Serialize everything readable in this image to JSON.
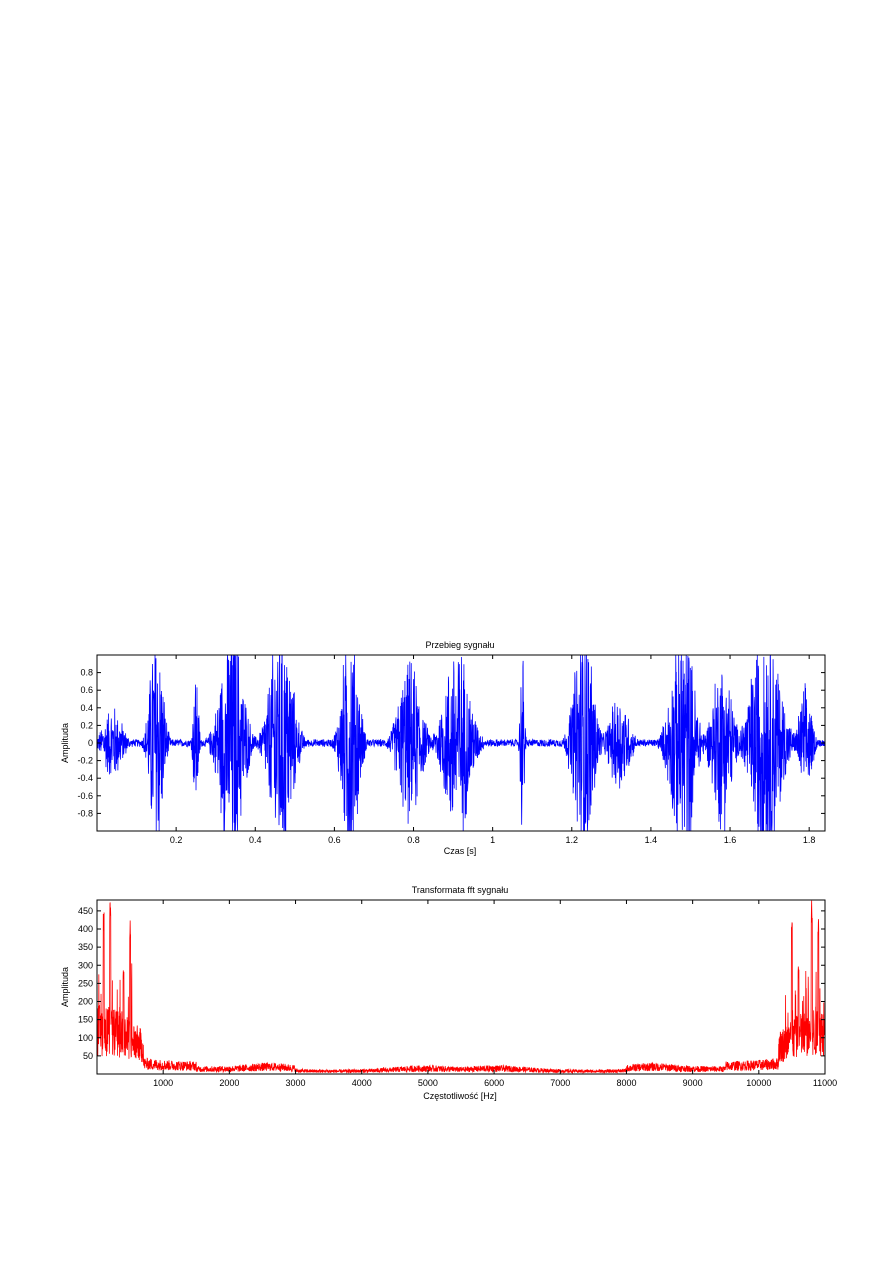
{
  "chart_data": [
    {
      "type": "line",
      "title": "Przebieg sygnału",
      "xlabel": "Czas [s]",
      "ylabel": "Amplituda",
      "xlim": [
        0,
        1.84
      ],
      "ylim": [
        -1,
        1
      ],
      "xticks": [
        0.2,
        0.4,
        0.6,
        0.8,
        1,
        1.2,
        1.4,
        1.6,
        1.8
      ],
      "xtick_labels": [
        "0.2",
        "0.4",
        "0.6",
        "0.8",
        "1",
        "1.2",
        "1.4",
        "1.6",
        "1.8"
      ],
      "yticks": [
        0.8,
        0.6,
        0.4,
        0.2,
        0,
        -0.2,
        -0.4,
        -0.6,
        -0.8
      ],
      "ytick_labels": [
        "0.8",
        "0.6",
        "0.4",
        "0.2",
        "0",
        "-0.2",
        "-0.4",
        "-0.6",
        "-0.8"
      ],
      "grid": false,
      "color": "#0000ff",
      "bursts": [
        {
          "center": 0.04,
          "width": 0.03,
          "amp": 0.3
        },
        {
          "center": 0.15,
          "width": 0.02,
          "amp": 1.0
        },
        {
          "center": 0.25,
          "width": 0.008,
          "amp": 0.6
        },
        {
          "center": 0.34,
          "width": 0.035,
          "amp": 1.0
        },
        {
          "center": 0.465,
          "width": 0.035,
          "amp": 1.0
        },
        {
          "center": 0.64,
          "width": 0.025,
          "amp": 1.0
        },
        {
          "center": 0.79,
          "width": 0.035,
          "amp": 0.65
        },
        {
          "center": 0.91,
          "width": 0.04,
          "amp": 0.8
        },
        {
          "center": 1.075,
          "width": 0.006,
          "amp": 0.8
        },
        {
          "center": 1.23,
          "width": 0.03,
          "amp": 1.0
        },
        {
          "center": 1.32,
          "width": 0.03,
          "amp": 0.4
        },
        {
          "center": 1.48,
          "width": 0.035,
          "amp": 1.0
        },
        {
          "center": 1.58,
          "width": 0.03,
          "amp": 0.7
        },
        {
          "center": 1.69,
          "width": 0.045,
          "amp": 1.0
        },
        {
          "center": 1.79,
          "width": 0.02,
          "amp": 0.45
        }
      ]
    },
    {
      "type": "line",
      "title": "Transformata fft sygnału",
      "xlabel": "Częstotliwość [Hz]",
      "ylabel": "Amplituda",
      "xlim": [
        0,
        11000
      ],
      "ylim": [
        0,
        480
      ],
      "xticks": [
        1000,
        2000,
        3000,
        4000,
        5000,
        6000,
        7000,
        8000,
        9000,
        10000,
        11000
      ],
      "xtick_labels": [
        "1000",
        "2000",
        "3000",
        "4000",
        "5000",
        "6000",
        "7000",
        "8000",
        "9000",
        "10000",
        "11000"
      ],
      "yticks": [
        450,
        400,
        350,
        300,
        250,
        200,
        150,
        100,
        50
      ],
      "ytick_labels": [
        "450",
        "400",
        "350",
        "300",
        "250",
        "200",
        "150",
        "100",
        "50"
      ],
      "grid": false,
      "color": "#ff0000",
      "peaks": [
        {
          "freq": 200,
          "value": 480
        },
        {
          "freq": 100,
          "value": 450
        },
        {
          "freq": 500,
          "value": 435
        },
        {
          "freq": 400,
          "value": 300
        },
        {
          "freq": 10800,
          "value": 480
        },
        {
          "freq": 10900,
          "value": 450
        },
        {
          "freq": 10500,
          "value": 435
        },
        {
          "freq": 10600,
          "value": 300
        }
      ]
    }
  ]
}
